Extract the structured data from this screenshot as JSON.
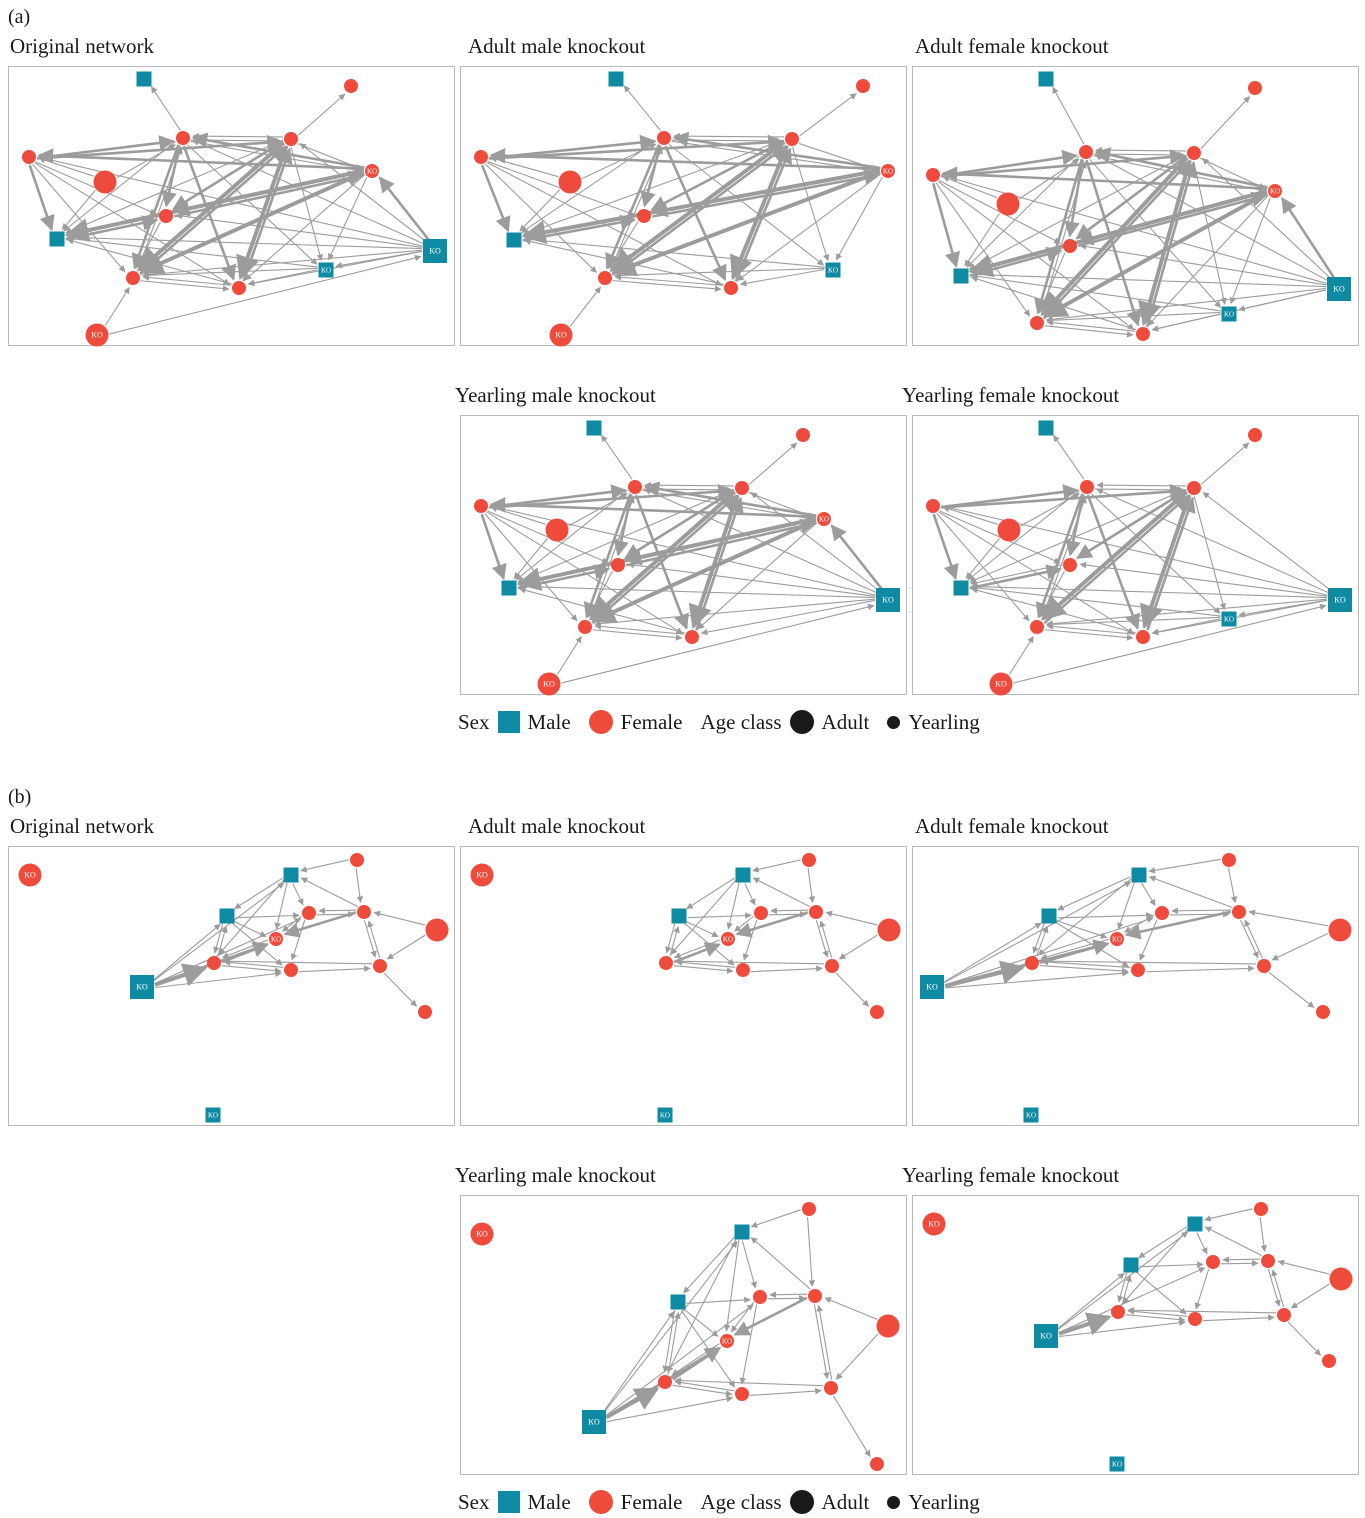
{
  "colors": {
    "male": "#0e8aa3",
    "female": "#ef4b3c",
    "edge": "#9c9c9c",
    "border": "#b9b9b9"
  },
  "parts": [
    {
      "label": "(a)",
      "titles": [
        "Original network",
        "Adult male knockout",
        "Adult female knockout",
        "Yearling male knockout",
        "Yearling female knockout"
      ]
    },
    {
      "label": "(b)",
      "titles": [
        "Original network",
        "Adult male knockout",
        "Adult female knockout",
        "Yearling male knockout",
        "Yearling female knockout"
      ]
    }
  ],
  "legend": {
    "sex_title": "Sex",
    "male": "Male",
    "female": "Female",
    "age_title": "Age class",
    "adult": "Adult",
    "yearling": "Yearling"
  },
  "ko_label": "KO"
}
